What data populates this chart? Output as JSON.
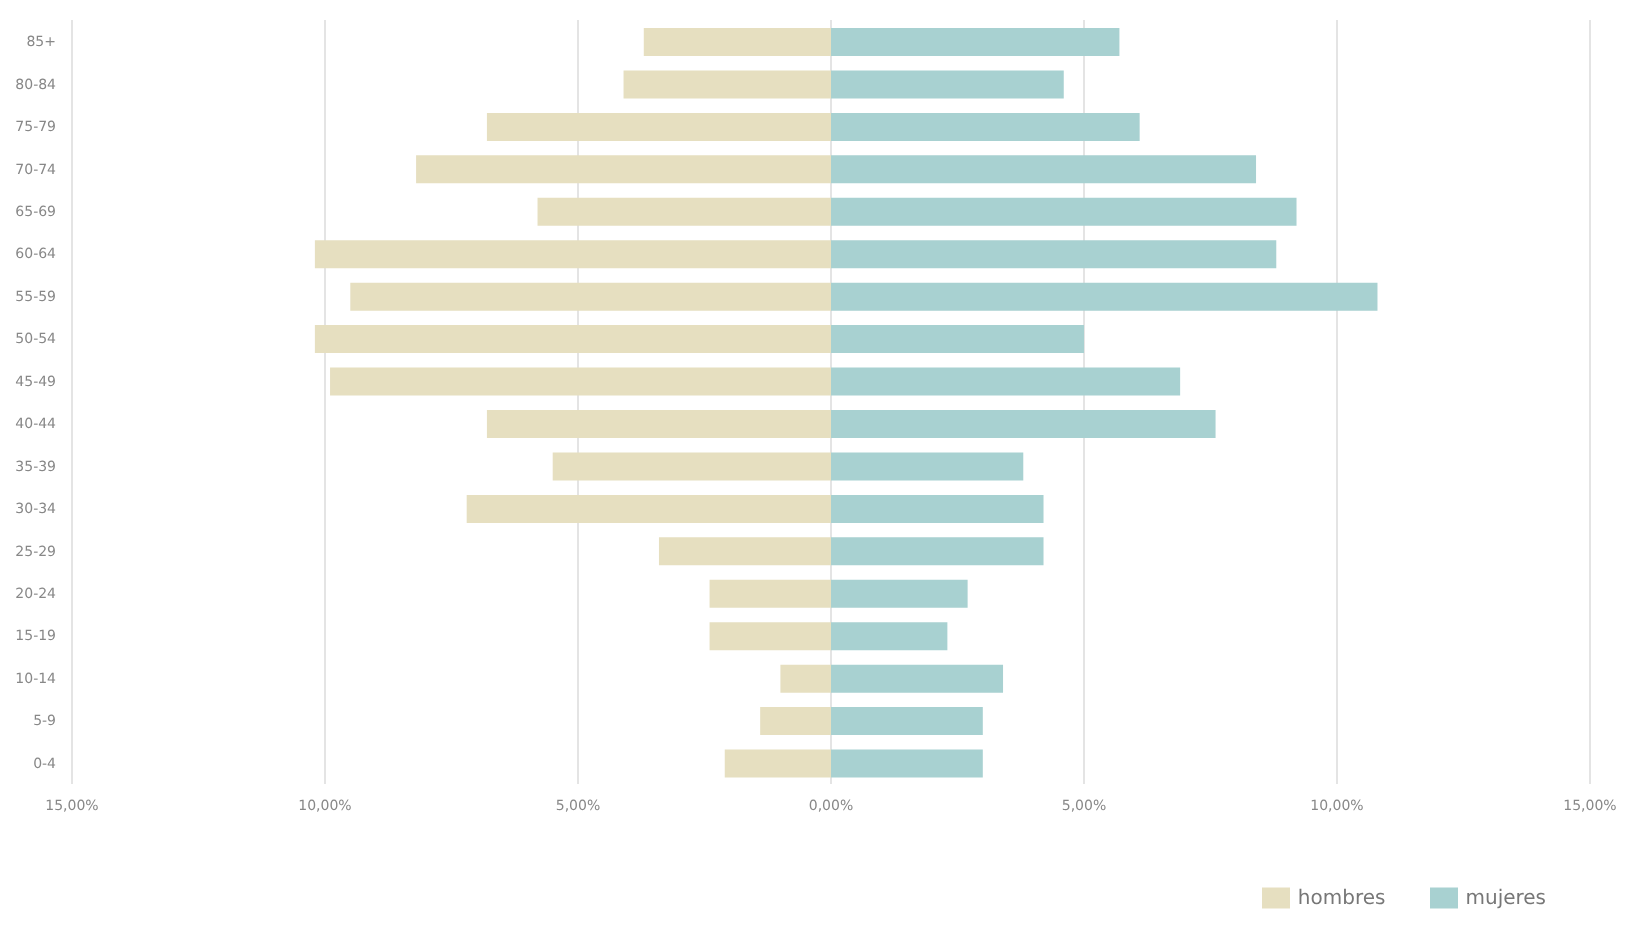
{
  "chart_data": {
    "type": "bar",
    "orientation": "horizontal",
    "stacked": true,
    "categories": [
      "85+",
      "80-84",
      "75-79",
      "70-74",
      "65-69",
      "60-64",
      "55-59",
      "50-54",
      "45-49",
      "40-44",
      "35-39",
      "30-34",
      "25-29",
      "20-24",
      "15-19",
      "10-14",
      "5-9",
      "0-4"
    ],
    "series": [
      {
        "name": "hombres",
        "color": "#e6dfc0",
        "values": [
          -3.7,
          -4.1,
          -6.8,
          -8.2,
          -5.8,
          -10.2,
          -9.5,
          -10.2,
          -9.9,
          -6.8,
          -5.5,
          -7.2,
          -3.4,
          -2.4,
          -2.4,
          -1.0,
          -1.4,
          -2.1
        ]
      },
      {
        "name": "mujeres",
        "color": "#a8d1d1",
        "values": [
          5.7,
          4.6,
          6.1,
          8.4,
          9.2,
          8.8,
          10.8,
          5.0,
          6.9,
          7.6,
          3.8,
          4.2,
          4.2,
          2.7,
          2.3,
          3.4,
          3.0,
          3.0
        ]
      }
    ],
    "xlim": [
      -15,
      15
    ],
    "xticks": [
      {
        "value": -15,
        "label": "15,00%"
      },
      {
        "value": -10,
        "label": "10,00%"
      },
      {
        "value": -5,
        "label": "5,00%"
      },
      {
        "value": 0,
        "label": "0,00%"
      },
      {
        "value": 5,
        "label": "5,00%"
      },
      {
        "value": 10,
        "label": "10,00%"
      },
      {
        "value": 15,
        "label": "15,00%"
      }
    ],
    "grid": "x",
    "legend": "bottom right"
  }
}
